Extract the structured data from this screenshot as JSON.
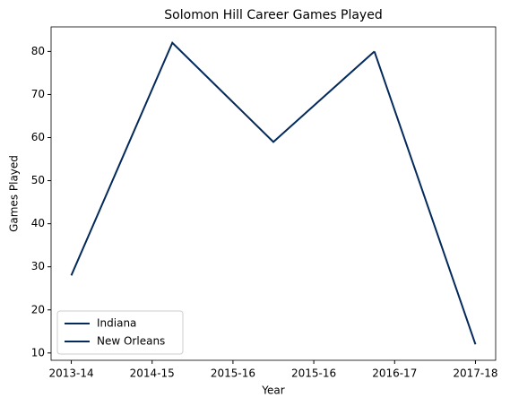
{
  "chart_data": {
    "type": "line",
    "title": "Solomon Hill  Career Games Played",
    "xlabel": "Year",
    "ylabel": "Games Played",
    "x": [
      0,
      1.25,
      2.5,
      3.75,
      5
    ],
    "series": [
      {
        "name": "Indiana",
        "color": "#042a5b",
        "values": [
          28,
          82,
          59,
          80,
          null
        ]
      },
      {
        "name": "New Orleans",
        "color": "#042a5b",
        "values": [
          null,
          null,
          null,
          80,
          12
        ]
      }
    ],
    "xlim": [
      -0.25,
      5.25
    ],
    "xticks": [
      {
        "value": 0,
        "label": "2013-14"
      },
      {
        "value": 1,
        "label": "2014-15"
      },
      {
        "value": 2,
        "label": "2015-16"
      },
      {
        "value": 3,
        "label": "2015-16"
      },
      {
        "value": 4,
        "label": "2016-17"
      },
      {
        "value": 5,
        "label": "2017-18"
      }
    ],
    "ylim": [
      8.3,
      85.7
    ],
    "yticks": [
      10,
      20,
      30,
      40,
      50,
      60,
      70,
      80
    ],
    "grid": false,
    "legend": "lower left"
  }
}
